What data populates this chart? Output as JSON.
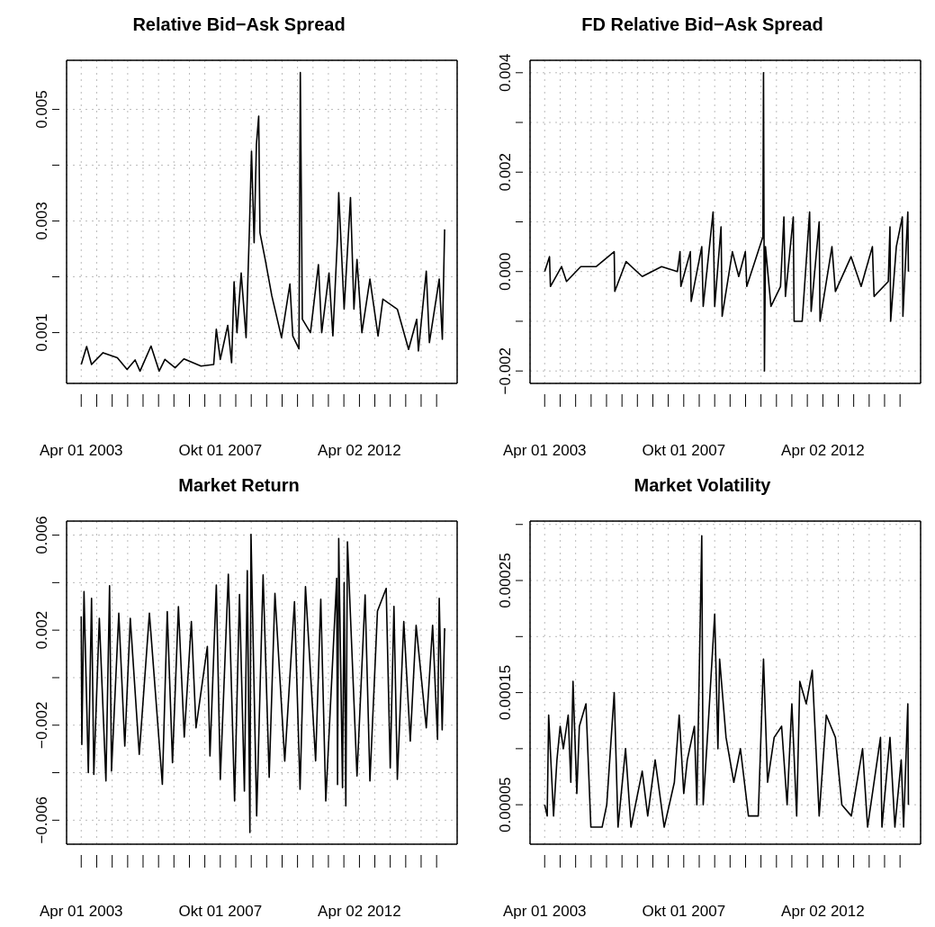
{
  "chart_data": [
    {
      "type": "line",
      "title": "Relative Bid−Ask Spread",
      "color": "#000000",
      "grid": true,
      "xlim": [
        "2002-10-10",
        "2015-06-01"
      ],
      "xticks": [
        {
          "value": "2003-04-01",
          "label": "Apr 01 2003"
        },
        {
          "value": "2003-10-01",
          "label": null
        },
        {
          "value": "2004-04-01",
          "label": null
        },
        {
          "value": "2004-10-01",
          "label": null
        },
        {
          "value": "2005-04-01",
          "label": null
        },
        {
          "value": "2005-10-01",
          "label": null
        },
        {
          "value": "2006-04-01",
          "label": null
        },
        {
          "value": "2006-10-01",
          "label": null
        },
        {
          "value": "2007-04-01",
          "label": null
        },
        {
          "value": "2007-10-01",
          "label": "Okt 01 2007"
        },
        {
          "value": "2008-04-01",
          "label": null
        },
        {
          "value": "2008-10-01",
          "label": null
        },
        {
          "value": "2009-04-01",
          "label": null
        },
        {
          "value": "2009-10-01",
          "label": null
        },
        {
          "value": "2010-04-01",
          "label": null
        },
        {
          "value": "2010-10-01",
          "label": null
        },
        {
          "value": "2011-04-01",
          "label": null
        },
        {
          "value": "2011-10-01",
          "label": null
        },
        {
          "value": "2012-04-02",
          "label": "Apr 02 2012"
        },
        {
          "value": "2012-10-01",
          "label": null
        },
        {
          "value": "2013-04-01",
          "label": null
        },
        {
          "value": "2013-10-01",
          "label": null
        },
        {
          "value": "2014-04-01",
          "label": null
        },
        {
          "value": "2014-10-01",
          "label": null
        }
      ],
      "ylim": [
        9e-05,
        0.00588
      ],
      "yticks": [
        0.001,
        {
          "value": 0.002,
          "label": null
        },
        0.003,
        {
          "value": 0.004,
          "label": null
        },
        0.005
      ],
      "x": [
        "2003-04-01",
        "2003-06-04",
        "2003-08-01",
        "2003-12-15",
        "2004-06-01",
        "2004-09-24",
        "2004-12-28",
        "2005-02-24",
        "2005-07-04",
        "2005-10-08",
        "2005-12-15",
        "2006-04-15",
        "2006-07-28",
        "2007-02-15",
        "2007-07-15",
        "2007-08-15",
        "2007-10-01",
        "2007-12-28",
        "2008-02-12",
        "2008-03-12",
        "2008-04-15",
        "2008-06-04",
        "2008-08-01",
        "2008-09-08",
        "2008-10-04",
        "2008-11-04",
        "2008-12-01",
        "2008-12-28",
        "2009-01-12",
        "2009-03-15",
        "2009-06-01",
        "2009-09-24",
        "2010-01-01",
        "2010-02-04",
        "2010-04-18",
        "2010-05-04",
        "2010-05-28",
        "2010-09-01",
        "2010-12-04",
        "2011-01-12",
        "2011-04-08",
        "2011-05-24",
        "2011-07-18",
        "2011-08-01",
        "2011-10-04",
        "2011-12-18",
        "2012-01-28",
        "2012-03-04",
        "2012-05-01",
        "2012-08-04",
        "2012-11-08",
        "2013-01-04",
        "2013-06-24",
        "2013-11-04",
        "2014-02-08",
        "2014-02-28",
        "2014-06-01",
        "2014-07-08",
        "2014-11-01",
        "2014-12-08",
        "2015-01-04"
      ],
      "values": [
        0.00043,
        0.00075,
        0.00043,
        0.00064,
        0.00055,
        0.00034,
        0.00051,
        0.00031,
        0.00076,
        0.00031,
        0.00052,
        0.00037,
        0.00053,
        0.0004,
        0.00043,
        0.00106,
        0.00052,
        0.00113,
        0.00046,
        0.00191,
        0.001,
        0.00207,
        0.00091,
        0.00279,
        0.00425,
        0.00261,
        0.00437,
        0.00488,
        0.00279,
        0.00231,
        0.00166,
        0.00091,
        0.00187,
        0.00094,
        0.00071,
        0.00566,
        0.00124,
        0.001,
        0.00222,
        0.001,
        0.00207,
        0.00094,
        0.00273,
        0.00351,
        0.00142,
        0.00342,
        0.00142,
        0.00231,
        0.001,
        0.00196,
        0.00094,
        0.0016,
        0.00142,
        0.0007,
        0.00124,
        0.00067,
        0.0021,
        0.00082,
        0.00196,
        0.00088,
        0.00285
      ]
    },
    {
      "type": "line",
      "title": "FD Relative Bid−Ask Spread",
      "color": "#000000",
      "grid": true,
      "xlim": [
        "2002-10-10",
        "2015-06-01"
      ],
      "xticks": [
        {
          "value": "2003-04-01",
          "label": "Apr 01 2003"
        },
        {
          "value": "2003-10-01",
          "label": null
        },
        {
          "value": "2004-04-01",
          "label": null
        },
        {
          "value": "2004-10-01",
          "label": null
        },
        {
          "value": "2005-04-01",
          "label": null
        },
        {
          "value": "2005-10-01",
          "label": null
        },
        {
          "value": "2006-04-01",
          "label": null
        },
        {
          "value": "2006-10-01",
          "label": null
        },
        {
          "value": "2007-04-01",
          "label": null
        },
        {
          "value": "2007-10-01",
          "label": "Okt 01 2007"
        },
        {
          "value": "2008-04-01",
          "label": null
        },
        {
          "value": "2008-10-01",
          "label": null
        },
        {
          "value": "2009-04-01",
          "label": null
        },
        {
          "value": "2009-10-01",
          "label": null
        },
        {
          "value": "2010-04-01",
          "label": null
        },
        {
          "value": "2010-10-01",
          "label": null
        },
        {
          "value": "2011-04-01",
          "label": null
        },
        {
          "value": "2011-10-01",
          "label": null
        },
        {
          "value": "2012-04-02",
          "label": "Apr 02 2012"
        },
        {
          "value": "2012-10-01",
          "label": null
        },
        {
          "value": "2013-04-01",
          "label": null
        },
        {
          "value": "2013-10-01",
          "label": null
        },
        {
          "value": "2014-04-01",
          "label": null
        },
        {
          "value": "2014-10-01",
          "label": null
        }
      ],
      "ylim": [
        -0.00225,
        0.00425
      ],
      "yticks": [
        {
          "value": -0.002,
          "label": "−0.002"
        },
        {
          "value": -0.001,
          "label": null
        },
        {
          "value": 0,
          "label": "0.000"
        },
        {
          "value": 0.001,
          "label": null
        },
        0.002,
        {
          "value": 0.003,
          "label": null
        },
        0.004
      ],
      "x": [
        "2003-04-01",
        "2003-05-28",
        "2003-06-08",
        "2003-10-18",
        "2003-12-15",
        "2004-06-01",
        "2004-12-01",
        "2005-07-01",
        "2005-07-08",
        "2005-11-18",
        "2006-05-28",
        "2007-01-12",
        "2007-07-18",
        "2007-08-18",
        "2007-08-28",
        "2007-12-18",
        "2007-12-28",
        "2008-05-01",
        "2008-05-18",
        "2008-09-12",
        "2008-10-01",
        "2008-12-15",
        "2008-12-28",
        "2009-04-28",
        "2009-07-12",
        "2009-09-28",
        "2009-10-15",
        "2010-04-24",
        "2010-05-01",
        "2010-05-12",
        "2010-05-24",
        "2010-07-28",
        "2010-11-18",
        "2010-12-28",
        "2011-01-15",
        "2011-04-18",
        "2011-04-28",
        "2011-08-01",
        "2011-10-28",
        "2011-11-15",
        "2012-02-18",
        "2012-02-28",
        "2012-07-18",
        "2012-08-28",
        "2013-03-01",
        "2013-06-28",
        "2013-11-08",
        "2013-11-28",
        "2014-05-15",
        "2014-06-04",
        "2014-06-12",
        "2014-08-18",
        "2014-10-28",
        "2014-11-04",
        "2015-01-01",
        "2015-01-08"
      ],
      "values": [
        0,
        0.0003,
        -0.0003,
        0.0001,
        -0.0002,
        0.0001,
        0.0001,
        0.0004,
        -0.0004,
        0.0002,
        -0.0001,
        0.0001,
        0,
        0.0004,
        -0.0003,
        0.0004,
        -0.0006,
        0.0005,
        -0.0007,
        0.0012,
        -0.0007,
        0.0009,
        -0.0009,
        0.0004,
        -0.0001,
        0.0004,
        -0.0003,
        0.0007,
        0.004,
        -0.002,
        0.0005,
        -0.0007,
        -0.0003,
        0.0011,
        -0.0005,
        0.0011,
        -0.001,
        -0.001,
        0.0012,
        -0.0008,
        0.001,
        -0.001,
        0.0005,
        -0.0004,
        0.0003,
        -0.0003,
        0.0005,
        -0.0005,
        -0.0002,
        0.0009,
        -0.001,
        0.0005,
        0.0011,
        -0.0009,
        0.0012,
        0
      ]
    },
    {
      "type": "line",
      "title": "Market Return",
      "color": "#000000",
      "grid": true,
      "xlim": [
        "2002-10-10",
        "2015-06-01"
      ],
      "xticks": [
        {
          "value": "2003-04-01",
          "label": "Apr 01 2003"
        },
        {
          "value": "2003-10-01",
          "label": null
        },
        {
          "value": "2004-04-01",
          "label": null
        },
        {
          "value": "2004-10-01",
          "label": null
        },
        {
          "value": "2005-04-01",
          "label": null
        },
        {
          "value": "2005-10-01",
          "label": null
        },
        {
          "value": "2006-04-01",
          "label": null
        },
        {
          "value": "2006-10-01",
          "label": null
        },
        {
          "value": "2007-04-01",
          "label": null
        },
        {
          "value": "2007-10-01",
          "label": "Okt 01 2007"
        },
        {
          "value": "2008-04-01",
          "label": null
        },
        {
          "value": "2008-10-01",
          "label": null
        },
        {
          "value": "2009-04-01",
          "label": null
        },
        {
          "value": "2009-10-01",
          "label": null
        },
        {
          "value": "2010-04-01",
          "label": null
        },
        {
          "value": "2010-10-01",
          "label": null
        },
        {
          "value": "2011-04-01",
          "label": null
        },
        {
          "value": "2011-10-01",
          "label": null
        },
        {
          "value": "2012-04-02",
          "label": "Apr 02 2012"
        },
        {
          "value": "2012-10-01",
          "label": null
        },
        {
          "value": "2013-04-01",
          "label": null
        },
        {
          "value": "2013-10-01",
          "label": null
        },
        {
          "value": "2014-04-01",
          "label": null
        },
        {
          "value": "2014-10-01",
          "label": null
        }
      ],
      "ylim": [
        -0.00701,
        0.00659
      ],
      "yticks": [
        {
          "value": -0.006,
          "label": "−0.006"
        },
        {
          "value": -0.004,
          "label": null
        },
        {
          "value": -0.002,
          "label": "−0.002"
        },
        {
          "value": 0,
          "label": null
        },
        0.002,
        {
          "value": 0.004,
          "label": null
        },
        0.006
      ],
      "x": [
        "2003-04-01",
        "2003-04-08",
        "2003-05-04",
        "2003-06-24",
        "2003-08-01",
        "2003-08-28",
        "2003-11-01",
        "2004-01-18",
        "2004-03-01",
        "2004-03-24",
        "2004-06-18",
        "2004-08-28",
        "2004-11-01",
        "2005-02-15",
        "2005-06-15",
        "2005-11-15",
        "2006-01-12",
        "2006-03-15",
        "2006-05-24",
        "2006-08-01",
        "2006-10-24",
        "2006-12-18",
        "2007-05-01",
        "2007-06-01",
        "2007-08-15",
        "2007-10-01",
        "2008-01-04",
        "2008-03-18",
        "2008-05-15",
        "2008-07-12",
        "2008-08-15",
        "2008-09-15",
        "2008-09-28",
        "2008-12-04",
        "2009-02-18",
        "2009-05-01",
        "2009-07-08",
        "2009-11-01",
        "2010-02-24",
        "2010-05-01",
        "2010-07-04",
        "2010-11-01",
        "2011-01-01",
        "2011-03-01",
        "2011-07-08",
        "2011-07-18",
        "2011-08-01",
        "2011-09-15",
        "2011-10-04",
        "2011-10-24",
        "2011-11-12",
        "2012-03-04",
        "2012-06-08",
        "2012-08-04",
        "2012-11-01",
        "2013-02-12",
        "2013-04-01",
        "2013-05-15",
        "2013-06-24",
        "2013-09-08",
        "2013-11-24",
        "2014-02-01",
        "2014-06-01",
        "2014-08-15",
        "2014-10-12",
        "2014-11-01",
        "2014-12-06",
        "2015-01-04"
      ],
      "values": [
        0.00257,
        -0.00281,
        0.00362,
        -0.004,
        0.00334,
        -0.00407,
        0.0025,
        -0.00435,
        0.00387,
        -0.00393,
        0.00271,
        -0.00288,
        0.0025,
        -0.00323,
        0.00271,
        -0.00449,
        0.00278,
        -0.00358,
        0.00299,
        -0.0025,
        0.00236,
        -0.00211,
        0.00131,
        -0.0033,
        0.0039,
        -0.00428,
        0.00435,
        -0.00519,
        0.0035,
        -0.00477,
        0.0045,
        -0.00652,
        0.00603,
        -0.00582,
        0.00432,
        -0.0042,
        0.00355,
        -0.00351,
        0.0032,
        -0.0047,
        0.00383,
        -0.0035,
        0.0033,
        -0.00519,
        0.00418,
        -0.0045,
        0.00586,
        -0.00463,
        0.004,
        -0.0054,
        0.00572,
        -0.00414,
        0.00348,
        -0.00435,
        0.0028,
        0.00376,
        -0.0038,
        0.003,
        -0.00428,
        0.00236,
        -0.00267,
        0.0022,
        -0.00211,
        0.0022,
        -0.0026,
        0.00334,
        -0.0022,
        0.00208
      ]
    },
    {
      "type": "line",
      "title": "Market Volatility",
      "color": "#000000",
      "grid": true,
      "xlim": [
        "2002-10-10",
        "2015-06-01"
      ],
      "xticks": [
        {
          "value": "2003-04-01",
          "label": "Apr 01 2003"
        },
        {
          "value": "2003-10-01",
          "label": null
        },
        {
          "value": "2004-04-01",
          "label": null
        },
        {
          "value": "2004-10-01",
          "label": null
        },
        {
          "value": "2005-04-01",
          "label": null
        },
        {
          "value": "2005-10-01",
          "label": null
        },
        {
          "value": "2006-04-01",
          "label": null
        },
        {
          "value": "2006-10-01",
          "label": null
        },
        {
          "value": "2007-04-01",
          "label": null
        },
        {
          "value": "2007-10-01",
          "label": "Okt 01 2007"
        },
        {
          "value": "2008-04-01",
          "label": null
        },
        {
          "value": "2008-10-01",
          "label": null
        },
        {
          "value": "2009-04-01",
          "label": null
        },
        {
          "value": "2009-10-01",
          "label": null
        },
        {
          "value": "2010-04-01",
          "label": null
        },
        {
          "value": "2010-10-01",
          "label": null
        },
        {
          "value": "2011-04-01",
          "label": null
        },
        {
          "value": "2011-10-01",
          "label": null
        },
        {
          "value": "2012-04-02",
          "label": "Apr 02 2012"
        },
        {
          "value": "2012-10-01",
          "label": null
        },
        {
          "value": "2013-04-01",
          "label": null
        },
        {
          "value": "2013-10-01",
          "label": null
        },
        {
          "value": "2014-04-01",
          "label": null
        },
        {
          "value": "2014-10-01",
          "label": null
        }
      ],
      "ylim": [
        1.48e-05,
        0.000303
      ],
      "yticks": [
        {
          "value": 5e-05,
          "label": "0.00005"
        },
        {
          "value": 0.0001,
          "label": null
        },
        {
          "value": 0.00015,
          "label": "0.00015"
        },
        {
          "value": 0.0002,
          "label": null
        },
        {
          "value": 0.00025,
          "label": "0.00025"
        },
        {
          "value": 0.0003,
          "label": null
        }
      ],
      "x": [
        "2003-04-01",
        "2003-05-01",
        "2003-05-18",
        "2003-07-15",
        "2003-08-24",
        "2003-10-01",
        "2003-11-08",
        "2004-01-04",
        "2004-02-04",
        "2004-03-01",
        "2004-04-15",
        "2004-05-15",
        "2004-08-01",
        "2004-09-28",
        "2005-02-08",
        "2005-04-04",
        "2005-07-01",
        "2005-08-15",
        "2005-11-12",
        "2006-01-15",
        "2006-05-28",
        "2006-08-01",
        "2006-10-28",
        "2007-02-12",
        "2007-06-12",
        "2007-08-08",
        "2007-10-01",
        "2007-11-12",
        "2008-02-04",
        "2008-03-04",
        "2008-05-01",
        "2008-05-18",
        "2008-07-15",
        "2008-10-01",
        "2008-11-08",
        "2008-11-28",
        "2009-02-12",
        "2009-05-15",
        "2009-08-01",
        "2009-11-04",
        "2010-02-28",
        "2010-05-01",
        "2010-06-18",
        "2010-09-04",
        "2010-12-01",
        "2011-02-04",
        "2011-04-01",
        "2011-05-28",
        "2011-07-04",
        "2011-09-18",
        "2011-11-28",
        "2012-02-18",
        "2012-05-12",
        "2012-08-28",
        "2012-11-12",
        "2013-03-04",
        "2013-07-15",
        "2013-09-12",
        "2014-02-12",
        "2014-03-01",
        "2014-06-04",
        "2014-08-01",
        "2014-10-15",
        "2014-11-12",
        "2015-01-01",
        "2015-01-08"
      ],
      "values": [
        5e-05,
        4e-05,
        0.00013,
        4e-05,
        9e-05,
        0.00012,
        0.0001,
        0.00013,
        7e-05,
        0.00016,
        6e-05,
        0.00012,
        0.00014,
        3e-05,
        3e-05,
        5e-05,
        0.00015,
        3e-05,
        0.0001,
        3e-05,
        8e-05,
        4e-05,
        9e-05,
        3e-05,
        7e-05,
        0.00013,
        6e-05,
        9e-05,
        0.00012,
        5e-05,
        0.00029,
        5e-05,
        0.00012,
        0.00022,
        0.0001,
        0.00018,
        0.00011,
        7e-05,
        0.0001,
        4e-05,
        4e-05,
        0.00018,
        7e-05,
        0.00011,
        0.00012,
        5e-05,
        0.00014,
        4e-05,
        0.00016,
        0.00014,
        0.00017,
        4e-05,
        0.00013,
        0.00011,
        5e-05,
        4e-05,
        0.0001,
        3e-05,
        0.00011,
        3e-05,
        0.00011,
        3e-05,
        9e-05,
        3e-05,
        0.00014,
        5e-05
      ]
    }
  ]
}
